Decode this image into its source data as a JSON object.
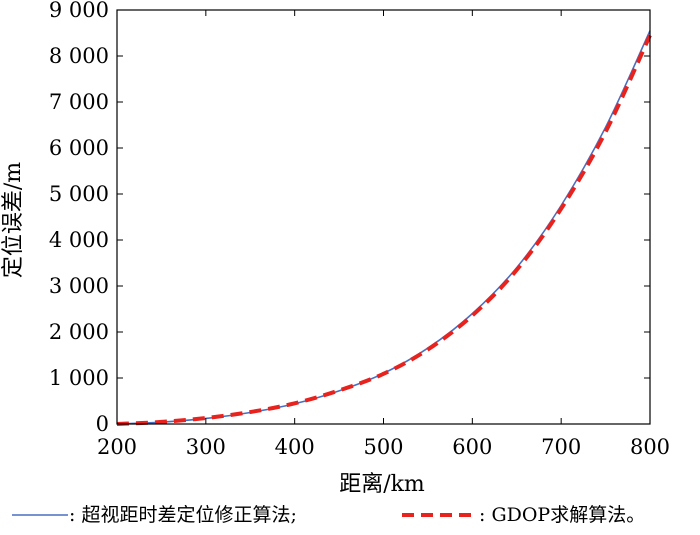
{
  "chart_data": {
    "type": "line",
    "title": "",
    "xlabel": "距离/km",
    "ylabel": "定位误差/m",
    "xlim": [
      200,
      800
    ],
    "ylim": [
      0,
      9000
    ],
    "xticks": [
      200,
      300,
      400,
      500,
      600,
      700,
      800
    ],
    "xtick_labels": [
      "200",
      "300",
      "400",
      "500",
      "600",
      "700",
      "800"
    ],
    "yticks": [
      0,
      1000,
      2000,
      3000,
      4000,
      5000,
      6000,
      7000,
      8000,
      9000
    ],
    "ytick_labels": [
      "0",
      "1 000",
      "2 000",
      "3 000",
      "4 000",
      "5 000",
      "6 000",
      "7 000",
      "8 000",
      "9 000"
    ],
    "grid": false,
    "legend_position": "bottom",
    "series": [
      {
        "name": "超视距时差定位修正算法;",
        "legend_prefix": ": ",
        "style": "solid",
        "color": "#4a6fc2",
        "x": [
          200,
          250,
          300,
          350,
          400,
          450,
          500,
          550,
          600,
          650,
          700,
          750,
          800
        ],
        "y": [
          0,
          40,
          120,
          250,
          440,
          720,
          1100,
          1650,
          2400,
          3400,
          4750,
          6450,
          8550
        ]
      },
      {
        "name": "GDOP求解算法。",
        "legend_prefix": ": ",
        "style": "dashed",
        "color": "#e8221d",
        "x": [
          200,
          250,
          300,
          350,
          400,
          450,
          500,
          550,
          600,
          650,
          700,
          750,
          800
        ],
        "y": [
          0,
          45,
          130,
          260,
          450,
          730,
          1090,
          1620,
          2360,
          3350,
          4680,
          6350,
          8450
        ]
      }
    ]
  }
}
